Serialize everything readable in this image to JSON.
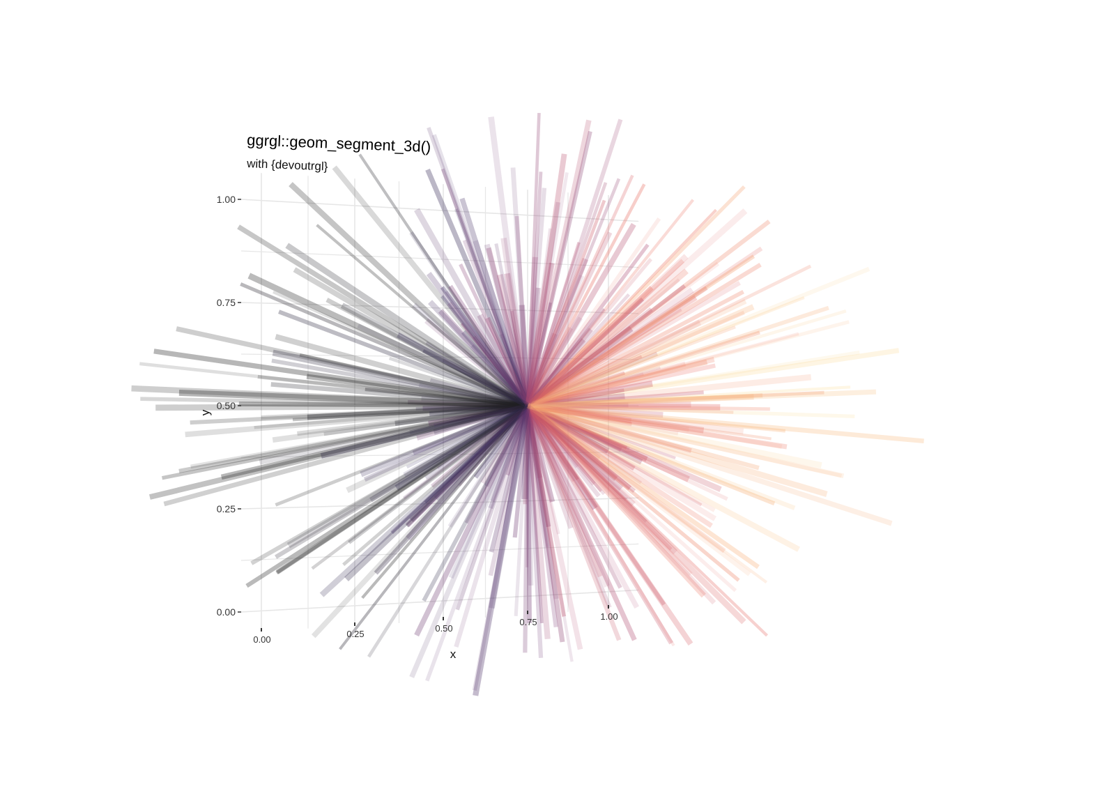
{
  "chart_data": {
    "type": "segment_3d",
    "title": "ggrgl::geom_segment_3d()",
    "subtitle": "with {devoutrgl}",
    "xlabel": "x",
    "ylabel": "y",
    "x_ticks": [
      "0.00",
      "0.25",
      "0.50",
      "0.75",
      "1.00"
    ],
    "y_ticks": [
      "0.00",
      "0.25",
      "0.50",
      "0.75",
      "1.00"
    ],
    "xlim": [
      0,
      1
    ],
    "ylim": [
      0,
      1
    ],
    "grid": true,
    "legend": "none",
    "center": {
      "x": 0.88,
      "y": 0.5
    },
    "n_segments": 360,
    "palette": [
      "#1f1f1f",
      "#3b2f63",
      "#7a3b73",
      "#b34b6e",
      "#e8685f",
      "#f6a46a",
      "#fcdc9c"
    ],
    "palette_order": "grey/purple on the left, red/orange at center-right, pale yellow on the far right"
  }
}
